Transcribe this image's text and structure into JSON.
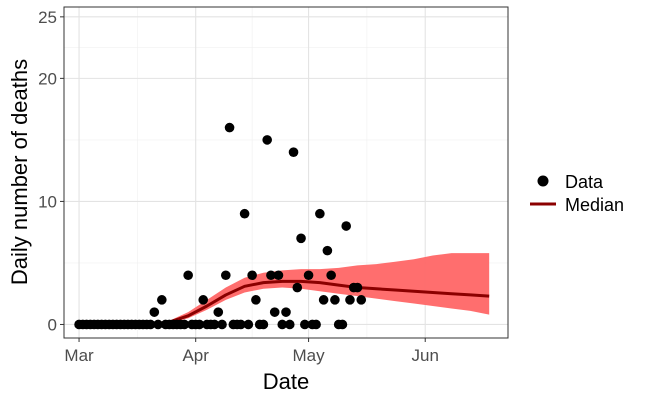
{
  "chart_data": {
    "type": "scatter",
    "xlabel": "Date",
    "ylabel": "Daily number of deaths",
    "xlim": [
      "2020-02-26",
      "2020-06-23"
    ],
    "ylim": [
      -1.1,
      25.8
    ],
    "x_ticks": [
      {
        "date": "2020-03-01",
        "label": "Mar"
      },
      {
        "date": "2020-04-01",
        "label": "Apr"
      },
      {
        "date": "2020-05-01",
        "label": "May"
      },
      {
        "date": "2020-06-01",
        "label": "Jun"
      }
    ],
    "y_ticks": [
      0,
      10,
      20,
      25
    ],
    "grid": true,
    "legend_position": "right",
    "series": [
      {
        "name": "Data",
        "kind": "points",
        "color": "#000000",
        "points": [
          [
            "2020-03-01",
            0
          ],
          [
            "2020-03-02",
            0
          ],
          [
            "2020-03-03",
            0
          ],
          [
            "2020-03-04",
            0
          ],
          [
            "2020-03-05",
            0
          ],
          [
            "2020-03-06",
            0
          ],
          [
            "2020-03-07",
            0
          ],
          [
            "2020-03-08",
            0
          ],
          [
            "2020-03-09",
            0
          ],
          [
            "2020-03-10",
            0
          ],
          [
            "2020-03-11",
            0
          ],
          [
            "2020-03-12",
            0
          ],
          [
            "2020-03-13",
            0
          ],
          [
            "2020-03-14",
            0
          ],
          [
            "2020-03-15",
            0
          ],
          [
            "2020-03-16",
            0
          ],
          [
            "2020-03-17",
            0
          ],
          [
            "2020-03-18",
            0
          ],
          [
            "2020-03-19",
            0
          ],
          [
            "2020-03-20",
            0
          ],
          [
            "2020-03-21",
            1
          ],
          [
            "2020-03-22",
            0
          ],
          [
            "2020-03-23",
            2
          ],
          [
            "2020-03-24",
            0
          ],
          [
            "2020-03-25",
            0
          ],
          [
            "2020-03-26",
            0
          ],
          [
            "2020-03-27",
            0
          ],
          [
            "2020-03-28",
            0
          ],
          [
            "2020-03-29",
            0
          ],
          [
            "2020-03-30",
            4
          ],
          [
            "2020-03-31",
            0
          ],
          [
            "2020-04-01",
            0
          ],
          [
            "2020-04-02",
            0
          ],
          [
            "2020-04-03",
            2
          ],
          [
            "2020-04-04",
            0
          ],
          [
            "2020-04-05",
            0
          ],
          [
            "2020-04-06",
            0
          ],
          [
            "2020-04-07",
            1
          ],
          [
            "2020-04-08",
            0
          ],
          [
            "2020-04-09",
            4
          ],
          [
            "2020-04-10",
            16
          ],
          [
            "2020-04-11",
            0
          ],
          [
            "2020-04-12",
            0
          ],
          [
            "2020-04-13",
            0
          ],
          [
            "2020-04-14",
            9
          ],
          [
            "2020-04-15",
            0
          ],
          [
            "2020-04-16",
            4
          ],
          [
            "2020-04-17",
            2
          ],
          [
            "2020-04-18",
            0
          ],
          [
            "2020-04-19",
            0
          ],
          [
            "2020-04-20",
            15
          ],
          [
            "2020-04-21",
            4
          ],
          [
            "2020-04-22",
            1
          ],
          [
            "2020-04-23",
            4
          ],
          [
            "2020-04-24",
            0
          ],
          [
            "2020-04-25",
            1
          ],
          [
            "2020-04-26",
            0
          ],
          [
            "2020-04-27",
            14
          ],
          [
            "2020-04-28",
            3
          ],
          [
            "2020-04-29",
            7
          ],
          [
            "2020-04-30",
            0
          ],
          [
            "2020-05-01",
            4
          ],
          [
            "2020-05-02",
            0
          ],
          [
            "2020-05-03",
            0
          ],
          [
            "2020-05-04",
            9
          ],
          [
            "2020-05-05",
            2
          ],
          [
            "2020-05-06",
            6
          ],
          [
            "2020-05-07",
            4
          ],
          [
            "2020-05-08",
            2
          ],
          [
            "2020-05-09",
            0
          ],
          [
            "2020-05-10",
            0
          ],
          [
            "2020-05-11",
            8
          ],
          [
            "2020-05-12",
            2
          ],
          [
            "2020-05-13",
            3
          ],
          [
            "2020-05-14",
            3
          ],
          [
            "2020-05-15",
            2
          ]
        ]
      },
      {
        "name": "Median",
        "kind": "line",
        "color": "#8b0000",
        "band_color": "#ff6666",
        "points": [
          [
            "2020-03-20",
            0
          ],
          [
            "2020-03-25",
            0.2
          ],
          [
            "2020-03-30",
            0.7
          ],
          [
            "2020-04-04",
            1.5
          ],
          [
            "2020-04-09",
            2.4
          ],
          [
            "2020-04-14",
            3.1
          ],
          [
            "2020-04-19",
            3.4
          ],
          [
            "2020-04-24",
            3.5
          ],
          [
            "2020-04-29",
            3.5
          ],
          [
            "2020-05-04",
            3.4
          ],
          [
            "2020-05-09",
            3.2
          ],
          [
            "2020-05-14",
            3.0
          ],
          [
            "2020-05-19",
            2.9
          ],
          [
            "2020-05-24",
            2.8
          ],
          [
            "2020-05-29",
            2.7
          ],
          [
            "2020-06-03",
            2.6
          ],
          [
            "2020-06-08",
            2.5
          ],
          [
            "2020-06-13",
            2.4
          ],
          [
            "2020-06-18",
            2.3
          ]
        ],
        "band_lower": [
          [
            "2020-03-20",
            0
          ],
          [
            "2020-03-25",
            0.1
          ],
          [
            "2020-03-30",
            0.5
          ],
          [
            "2020-04-04",
            1.2
          ],
          [
            "2020-04-09",
            2.0
          ],
          [
            "2020-04-14",
            2.6
          ],
          [
            "2020-04-19",
            2.9
          ],
          [
            "2020-04-24",
            3.0
          ],
          [
            "2020-04-29",
            2.9
          ],
          [
            "2020-05-04",
            2.7
          ],
          [
            "2020-05-09",
            2.5
          ],
          [
            "2020-05-14",
            2.3
          ],
          [
            "2020-05-19",
            2.1
          ],
          [
            "2020-05-24",
            1.9
          ],
          [
            "2020-05-29",
            1.7
          ],
          [
            "2020-06-03",
            1.5
          ],
          [
            "2020-06-08",
            1.3
          ],
          [
            "2020-06-13",
            1.1
          ],
          [
            "2020-06-18",
            0.8
          ]
        ],
        "band_upper": [
          [
            "2020-03-20",
            0
          ],
          [
            "2020-03-25",
            0.3
          ],
          [
            "2020-03-30",
            1.0
          ],
          [
            "2020-04-04",
            2.0
          ],
          [
            "2020-04-09",
            3.0
          ],
          [
            "2020-04-14",
            3.8
          ],
          [
            "2020-04-19",
            4.2
          ],
          [
            "2020-04-24",
            4.4
          ],
          [
            "2020-04-29",
            4.5
          ],
          [
            "2020-05-04",
            4.5
          ],
          [
            "2020-05-09",
            4.6
          ],
          [
            "2020-05-14",
            4.8
          ],
          [
            "2020-05-19",
            4.9
          ],
          [
            "2020-05-24",
            5.1
          ],
          [
            "2020-05-29",
            5.3
          ],
          [
            "2020-06-03",
            5.6
          ],
          [
            "2020-06-08",
            5.8
          ],
          [
            "2020-06-13",
            5.8
          ],
          [
            "2020-06-18",
            5.8
          ]
        ]
      }
    ]
  }
}
